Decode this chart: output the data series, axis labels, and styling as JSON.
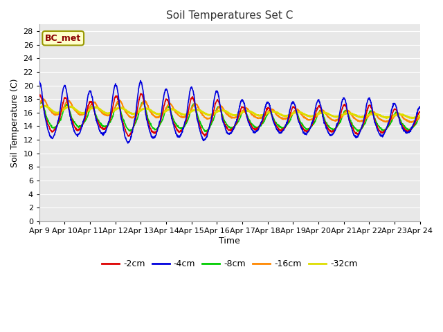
{
  "title": "Soil Temperatures Set C",
  "xlabel": "Time",
  "ylabel": "Soil Temperature (C)",
  "ylim": [
    0,
    29
  ],
  "yticks": [
    0,
    2,
    4,
    6,
    8,
    10,
    12,
    14,
    16,
    18,
    20,
    22,
    24,
    26,
    28
  ],
  "xlim": [
    0,
    15
  ],
  "xtick_labels": [
    "Apr 9",
    "Apr 10",
    "Apr 11",
    "Apr 12",
    "Apr 13",
    "Apr 14",
    "Apr 15",
    "Apr 16",
    "Apr 17",
    "Apr 18",
    "Apr 19",
    "Apr 20",
    "Apr 21",
    "Apr 22",
    "Apr 23",
    "Apr 24"
  ],
  "legend_labels": [
    "-2cm",
    "-4cm",
    "-8cm",
    "-16cm",
    "-32cm"
  ],
  "legend_colors": [
    "#dd0000",
    "#0000dd",
    "#00cc00",
    "#ff8800",
    "#dddd00"
  ],
  "line_widths": [
    1.2,
    1.2,
    1.2,
    1.5,
    2.0
  ],
  "annotation_label": "BC_met",
  "plot_bg_color": "#e8e8e8",
  "grid_color": "#ffffff",
  "fig_bg_color": "#ffffff"
}
